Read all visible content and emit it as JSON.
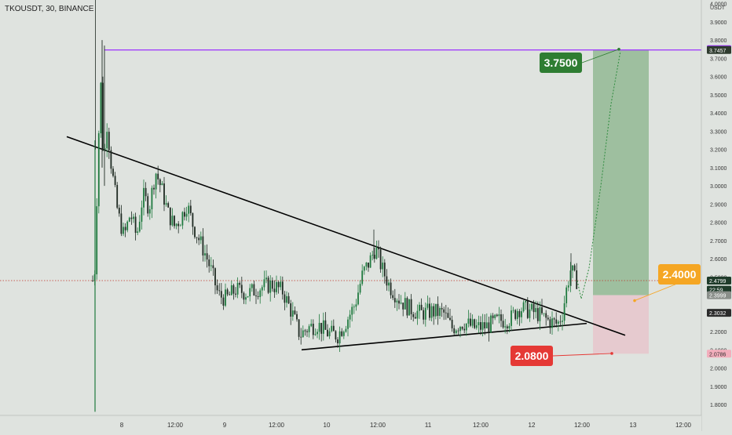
{
  "symbol_line": "TKOUSDT, 30, BINANCE",
  "currency_label": "USDT",
  "colors": {
    "background": "#dfe3df",
    "up_candle": "#1f7a3f",
    "down_candle": "#1e2a22",
    "resistance_line": "#9b30ff",
    "trendline": "#000000",
    "target_zone": "#93b894",
    "stop_zone": "#e7c7cd",
    "current_price_line": "#c0392b",
    "target_label": "#2e7d32",
    "entry_label": "#f5a623",
    "stop_label": "#e53935"
  },
  "chart_data": {
    "type": "candlestick",
    "ylim": [
      1.74,
      4.02
    ],
    "y_ticks": [
      "4.0000",
      "3.9000",
      "3.8000",
      "3.7000",
      "3.6000",
      "3.5000",
      "3.4000",
      "3.3000",
      "3.2000",
      "3.1000",
      "3.0000",
      "2.9000",
      "2.8000",
      "2.7000",
      "2.6000",
      "2.5000",
      "2.4000",
      "2.3000",
      "2.2000",
      "2.1000",
      "2.0000",
      "1.9000",
      "1.8000"
    ],
    "x_ticks": [
      "8",
      "12:00",
      "9",
      "12:00",
      "10",
      "12:00",
      "11",
      "12:00",
      "12",
      "12:00",
      "13",
      "12:00"
    ],
    "resistance_level": 3.7457,
    "annotations": {
      "target": "3.7500",
      "entry": "2.4000",
      "stop": "2.0800"
    },
    "price_badges": [
      {
        "label": "3.7500",
        "value": 3.75
      },
      {
        "label": "3.7457",
        "value": 3.7457
      },
      {
        "label": "2.4799",
        "value": 2.4799
      },
      {
        "label": "22:59",
        "value": 2.43
      },
      {
        "label": "2.3999",
        "value": 2.3999
      },
      {
        "label": "2.3032",
        "value": 2.3032
      },
      {
        "label": "2.0786",
        "value": 2.0786
      }
    ],
    "current_price": 2.4799,
    "position": {
      "entry": 2.3999,
      "target": 3.7457,
      "stop": 2.0786
    },
    "descending_trendline": {
      "start": 3.27,
      "end": 2.18
    },
    "ascending_trendline": {
      "start": 2.1,
      "end": 2.245
    },
    "projection_path": [
      2.48,
      2.38,
      2.55,
      3.0,
      3.45,
      3.74
    ]
  }
}
